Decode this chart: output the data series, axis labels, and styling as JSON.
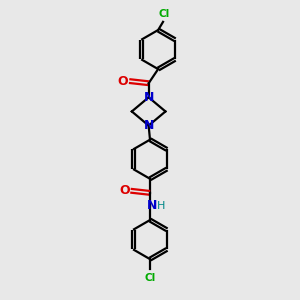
{
  "background_color": "#e8e8e8",
  "bond_color": "#000000",
  "n_color": "#0000cc",
  "o_color": "#dd0000",
  "cl_color": "#00aa00",
  "nh_color": "#008888",
  "line_width": 1.6,
  "figsize": [
    3.0,
    3.0
  ],
  "dpi": 100,
  "xlim": [
    0,
    6
  ],
  "ylim": [
    0,
    11
  ]
}
